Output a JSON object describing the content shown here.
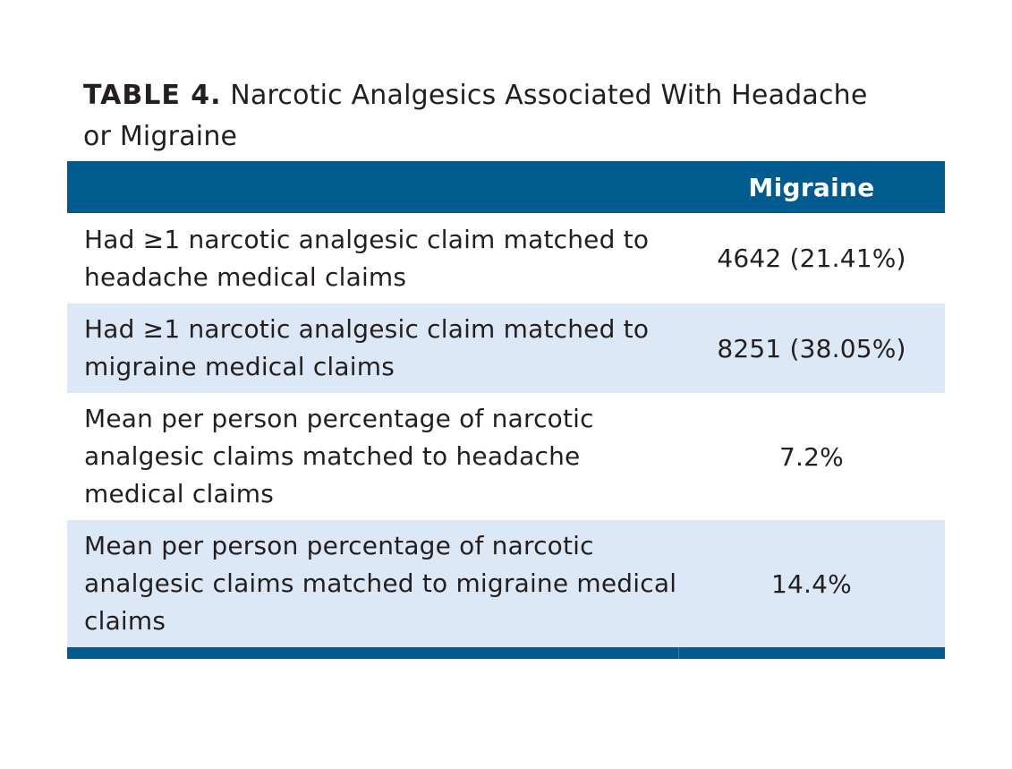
{
  "caption": {
    "label": "TABLE 4.",
    "title": "Narcotic Analgesics Associated With Headache or Migraine"
  },
  "table": {
    "header": {
      "col_description": "",
      "col_value": "Migraine"
    },
    "rows": [
      {
        "description": "Had ≥1 narcotic analgesic claim matched to headache medical claims",
        "value": "4642 (21.41%)"
      },
      {
        "description": "Had ≥1 narcotic analgesic claim matched to migraine medical claims",
        "value": "8251 (38.05%)"
      },
      {
        "description": "Mean per person percentage of narcotic analgesic claims matched to headache medical claims",
        "value": "7.2%"
      },
      {
        "description": "Mean per person percentage of narcotic analgesic claims matched to migraine medical claims",
        "value": "14.4%"
      }
    ]
  },
  "colors": {
    "header_bg": "#005b8f",
    "shaded_row_bg": "#dce8f5",
    "text": "#231f20"
  }
}
